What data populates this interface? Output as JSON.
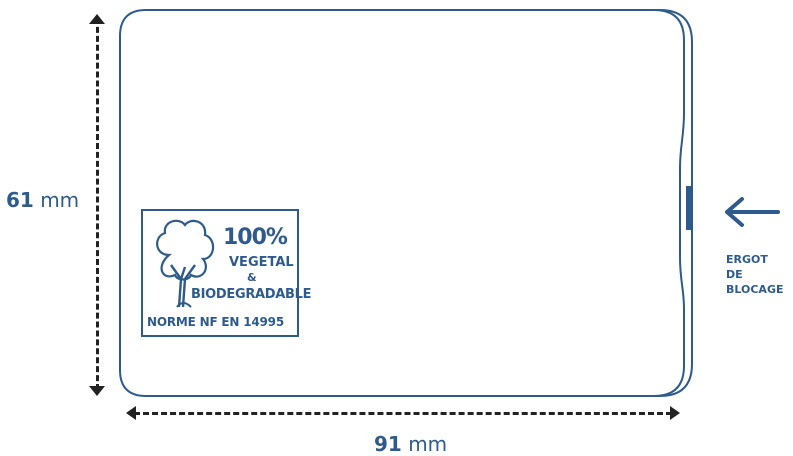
{
  "colors": {
    "brand": "#2e5b8c",
    "dimension": "#222222"
  },
  "dimensions": {
    "height": {
      "value": "61",
      "unit": "mm"
    },
    "width": {
      "value": "91",
      "unit": "mm"
    }
  },
  "label": {
    "percent": "100%",
    "vegetal": "VEGETAL",
    "ampersand": "&",
    "biodegradable": "BIODEGRADABLE",
    "norme": "NORME NF EN 14995",
    "icon": "tree-icon"
  },
  "callout": {
    "icon": "arrow-left-icon",
    "lines": [
      "ERGOT",
      "DE",
      "BLOCAGE"
    ]
  }
}
